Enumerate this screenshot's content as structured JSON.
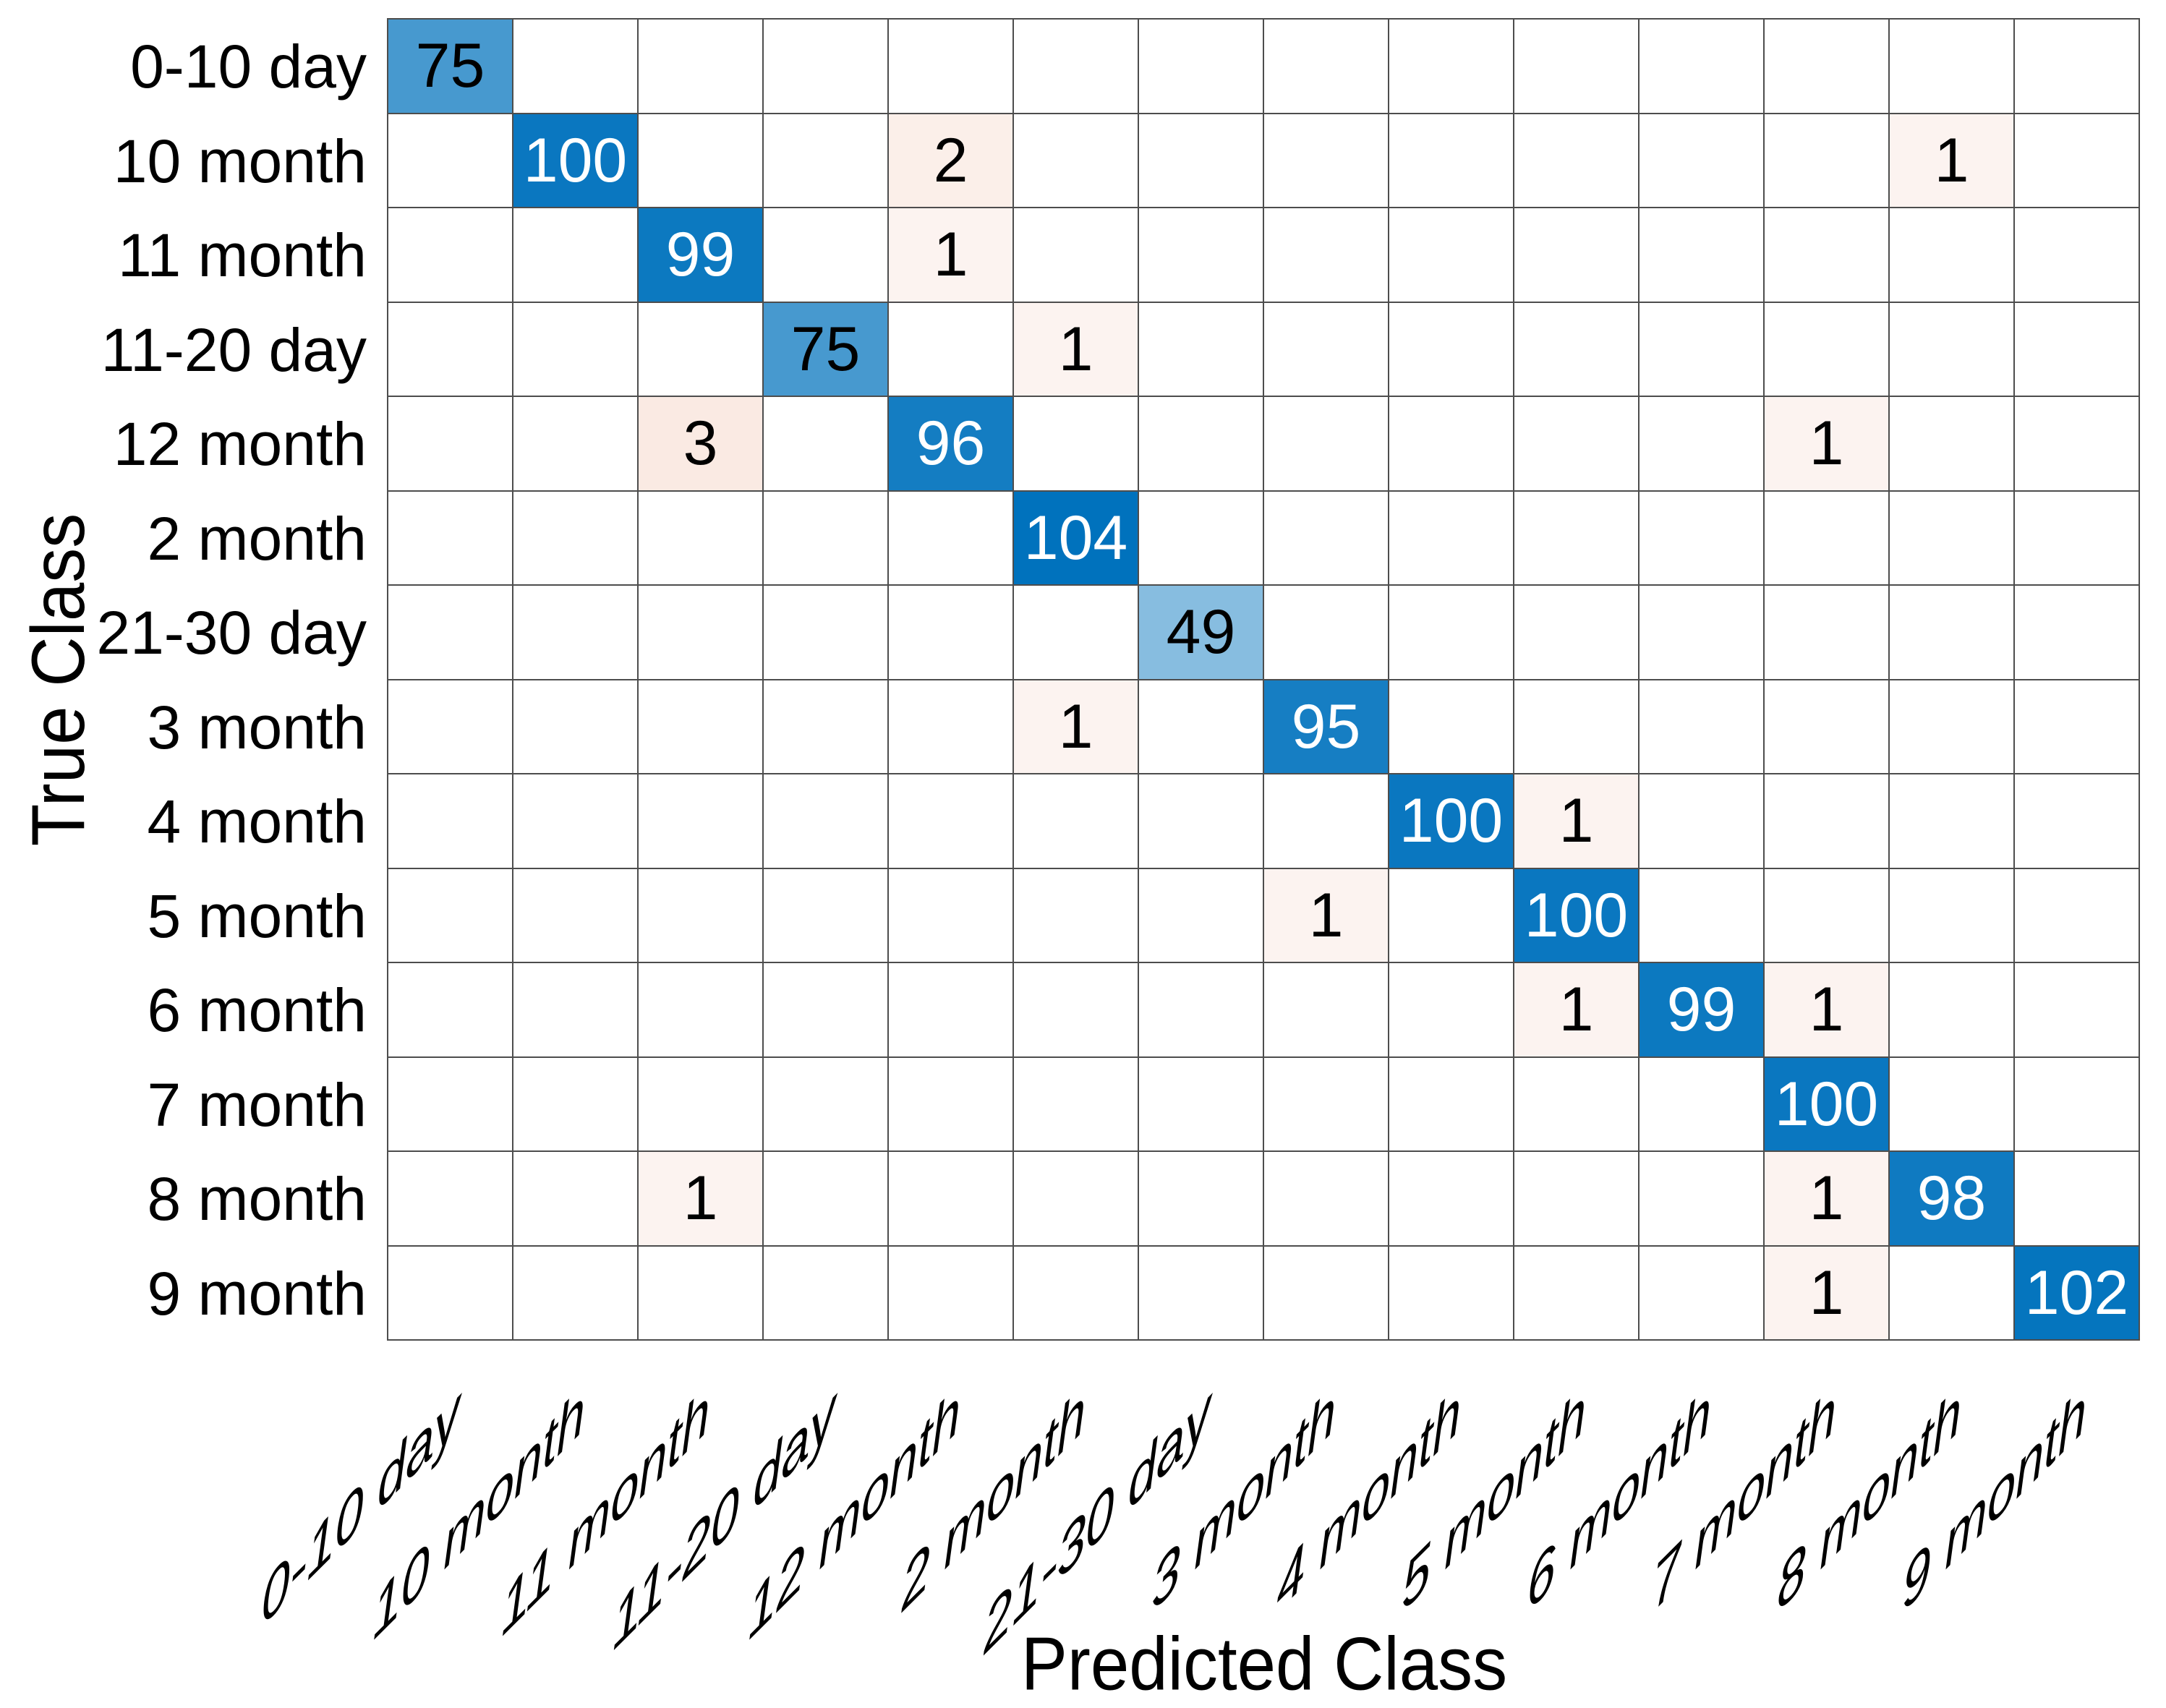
{
  "chart_data": {
    "type": "heatmap",
    "subtype": "confusion-matrix",
    "xlabel": "Predicted Class",
    "ylabel": "True Class",
    "classes": [
      "0-10 day",
      "10 month",
      "11 month",
      "11-20 day",
      "12 month",
      "2 month",
      "21-30 day",
      "3 month",
      "4 month",
      "5 month",
      "6 month",
      "7 month",
      "8 month",
      "9 month"
    ],
    "matrix": [
      [
        75,
        0,
        0,
        0,
        0,
        0,
        0,
        0,
        0,
        0,
        0,
        0,
        0,
        0
      ],
      [
        0,
        100,
        0,
        0,
        2,
        0,
        0,
        0,
        0,
        0,
        0,
        0,
        1,
        0
      ],
      [
        0,
        0,
        99,
        0,
        1,
        0,
        0,
        0,
        0,
        0,
        0,
        0,
        0,
        0
      ],
      [
        0,
        0,
        0,
        75,
        0,
        1,
        0,
        0,
        0,
        0,
        0,
        0,
        0,
        0
      ],
      [
        0,
        0,
        3,
        0,
        96,
        0,
        0,
        0,
        0,
        0,
        0,
        1,
        0,
        0
      ],
      [
        0,
        0,
        0,
        0,
        0,
        104,
        0,
        0,
        0,
        0,
        0,
        0,
        0,
        0
      ],
      [
        0,
        0,
        0,
        0,
        0,
        0,
        49,
        0,
        0,
        0,
        0,
        0,
        0,
        0
      ],
      [
        0,
        0,
        0,
        0,
        0,
        1,
        0,
        95,
        0,
        0,
        0,
        0,
        0,
        0
      ],
      [
        0,
        0,
        0,
        0,
        0,
        0,
        0,
        0,
        100,
        1,
        0,
        0,
        0,
        0
      ],
      [
        0,
        0,
        0,
        0,
        0,
        0,
        0,
        1,
        0,
        100,
        0,
        0,
        0,
        0
      ],
      [
        0,
        0,
        0,
        0,
        0,
        0,
        0,
        0,
        0,
        1,
        99,
        1,
        0,
        0
      ],
      [
        0,
        0,
        0,
        0,
        0,
        0,
        0,
        0,
        0,
        0,
        0,
        100,
        0,
        0
      ],
      [
        0,
        0,
        1,
        0,
        0,
        0,
        0,
        0,
        0,
        0,
        0,
        1,
        98,
        0
      ],
      [
        0,
        0,
        0,
        0,
        0,
        0,
        0,
        0,
        0,
        0,
        0,
        1,
        0,
        102
      ]
    ],
    "max_diagonal_value": 104,
    "colors": {
      "diagonal_base": "#0072BD",
      "offdiagonal_base": "#D95319",
      "empty_cell": "#FFFFFF",
      "grid_line": "#4D4D4D",
      "text_dark": "#000000",
      "text_light": "#FFFFFF",
      "background": "#FFFFFF"
    },
    "layout": {
      "x_tick_rotation_deg": 45,
      "grid": "on",
      "legend": "none"
    }
  }
}
